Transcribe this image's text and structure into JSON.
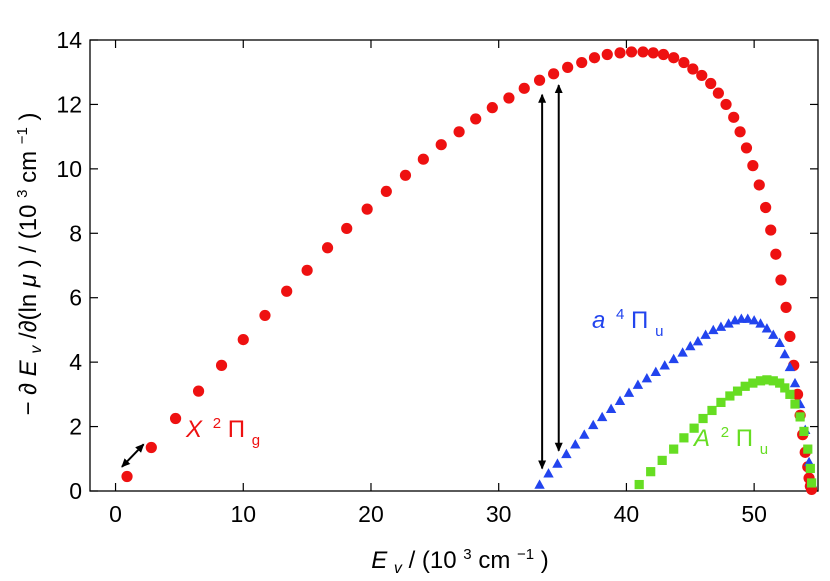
{
  "chart_data": {
    "type": "scatter",
    "xlim": [
      -2,
      55
    ],
    "ylim": [
      0,
      14
    ],
    "x_ticks": [
      0,
      10,
      20,
      30,
      40,
      50
    ],
    "y_ticks": [
      0,
      2,
      4,
      6,
      8,
      10,
      12,
      14
    ],
    "xlabel": {
      "symbol": "E",
      "sub": "v",
      "text": " / (10",
      "sup": "3",
      "tail": " cm",
      "tail_sup": "−1",
      "close": ")"
    },
    "ylabel": {
      "lead": "− ∂",
      "symbol": "E",
      "sub": "v",
      "mid": "/∂(ln ",
      "mu": "μ",
      "text": ") / (10",
      "sup": "3",
      "tail": " cm",
      "tail_sup": "−1",
      "close": ")"
    },
    "series": [
      {
        "name": "X 2Πg",
        "label": {
          "letter": "X",
          "sup": "2",
          "sym": "Π",
          "sub": "g"
        },
        "marker": "circle",
        "color": "#ee1111",
        "x": [
          0.9,
          2.8,
          4.7,
          6.5,
          8.3,
          10.0,
          11.7,
          13.4,
          15.0,
          16.6,
          18.1,
          19.7,
          21.2,
          22.7,
          24.1,
          25.5,
          26.9,
          28.2,
          29.5,
          30.8,
          32.0,
          33.2,
          34.3,
          35.4,
          36.5,
          37.5,
          38.5,
          39.5,
          40.4,
          41.3,
          42.1,
          42.9,
          43.7,
          44.5,
          45.2,
          45.9,
          46.6,
          47.2,
          47.8,
          48.4,
          48.9,
          49.4,
          49.9,
          50.4,
          50.9,
          51.3,
          51.7,
          52.1,
          52.5,
          52.8,
          53.1,
          53.4,
          53.6,
          53.8,
          54.0,
          54.2,
          54.3,
          54.4,
          54.5
        ],
        "y": [
          0.45,
          1.35,
          2.25,
          3.1,
          3.9,
          4.7,
          5.45,
          6.2,
          6.85,
          7.55,
          8.15,
          8.75,
          9.3,
          9.8,
          10.3,
          10.75,
          11.15,
          11.55,
          11.9,
          12.2,
          12.5,
          12.75,
          12.95,
          13.15,
          13.3,
          13.45,
          13.55,
          13.6,
          13.63,
          13.63,
          13.6,
          13.55,
          13.45,
          13.3,
          13.1,
          12.9,
          12.65,
          12.35,
          12.0,
          11.6,
          11.15,
          10.65,
          10.1,
          9.5,
          8.8,
          8.1,
          7.35,
          6.55,
          5.7,
          4.8,
          3.9,
          3.0,
          2.35,
          1.75,
          1.2,
          0.75,
          0.4,
          0.15,
          0.05
        ]
      },
      {
        "name": "a 4Πu",
        "label": {
          "letter": "a",
          "sup": "4",
          "sym": "Π",
          "sub": "u"
        },
        "marker": "triangle",
        "color": "#2244ee",
        "x": [
          33.2,
          33.9,
          34.6,
          35.3,
          36.0,
          36.7,
          37.4,
          38.1,
          38.8,
          39.5,
          40.2,
          40.9,
          41.6,
          42.3,
          43.0,
          43.7,
          44.4,
          45.0,
          45.6,
          46.2,
          46.8,
          47.4,
          48.0,
          48.5,
          49.0,
          49.5,
          50.0,
          50.5,
          51.0,
          51.5,
          52.0,
          52.4,
          52.8,
          53.2,
          53.6,
          54.0,
          54.3,
          54.5
        ],
        "y": [
          0.2,
          0.55,
          0.85,
          1.15,
          1.45,
          1.75,
          2.05,
          2.3,
          2.55,
          2.8,
          3.05,
          3.3,
          3.5,
          3.7,
          3.9,
          4.1,
          4.3,
          4.5,
          4.65,
          4.85,
          5.0,
          5.1,
          5.2,
          5.3,
          5.35,
          5.35,
          5.3,
          5.2,
          5.05,
          4.85,
          4.6,
          4.25,
          3.85,
          3.35,
          2.7,
          1.9,
          0.9,
          0.25
        ]
      },
      {
        "name": "A 2Πu",
        "label": {
          "letter": "A",
          "sup": "2",
          "sym": "Π",
          "sub": "u"
        },
        "marker": "square",
        "color": "#66dd22",
        "x": [
          41.0,
          41.9,
          42.8,
          43.7,
          44.5,
          45.3,
          46.0,
          46.7,
          47.4,
          48.1,
          48.7,
          49.3,
          49.9,
          50.5,
          51.0,
          51.5,
          52.0,
          52.4,
          52.8,
          53.2,
          53.6,
          53.9,
          54.2,
          54.4,
          54.5
        ],
        "y": [
          0.2,
          0.6,
          0.95,
          1.3,
          1.65,
          1.95,
          2.25,
          2.5,
          2.75,
          2.95,
          3.1,
          3.25,
          3.35,
          3.42,
          3.45,
          3.42,
          3.35,
          3.2,
          3.0,
          2.7,
          2.3,
          1.85,
          1.3,
          0.7,
          0.25
        ]
      }
    ],
    "annotations": [
      {
        "type": "double-arrow",
        "from": [
          0.5,
          0.75
        ],
        "to": [
          2.2,
          1.45
        ]
      },
      {
        "type": "double-arrow",
        "from": [
          33.4,
          0.7
        ],
        "to": [
          33.4,
          12.3
        ]
      },
      {
        "type": "double-arrow",
        "from": [
          34.7,
          1.25
        ],
        "to": [
          34.7,
          12.6
        ]
      }
    ]
  }
}
